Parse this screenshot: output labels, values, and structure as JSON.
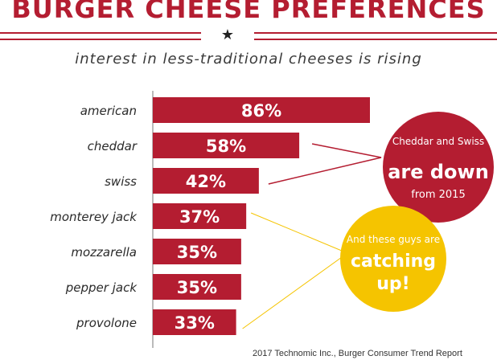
{
  "chart_data": {
    "type": "bar",
    "orientation": "horizontal",
    "title": "BURGER CHEESE PREFERENCES",
    "subtitle": "interest in less-traditional cheeses is rising",
    "categories": [
      "american",
      "cheddar",
      "swiss",
      "monterey jack",
      "mozzarella",
      "pepper jack",
      "provolone"
    ],
    "values": [
      86,
      58,
      42,
      37,
      35,
      35,
      33
    ],
    "value_labels": [
      "86%",
      "58%",
      "42%",
      "37%",
      "35%",
      "35%",
      "33%"
    ],
    "bar_color": "#b41d31",
    "grid": false,
    "legend": "none",
    "annotations": [
      {
        "lines": [
          "Cheddar and Swiss",
          "are down",
          "from 2015"
        ],
        "color": "#b41d31",
        "text_color": "#ffffff",
        "connector_color": "#b41d31",
        "targets": [
          "cheddar",
          "swiss"
        ]
      },
      {
        "lines": [
          "And these guys are",
          "catching",
          "up!"
        ],
        "color": "#f5c400",
        "text_color": "#ffffff",
        "connector_color": "#f5c400",
        "targets": [
          "monterey jack",
          "provolone"
        ]
      }
    ],
    "source": "2017 Technomic Inc., Burger Consumer Trend Report"
  },
  "star_glyph": "★"
}
